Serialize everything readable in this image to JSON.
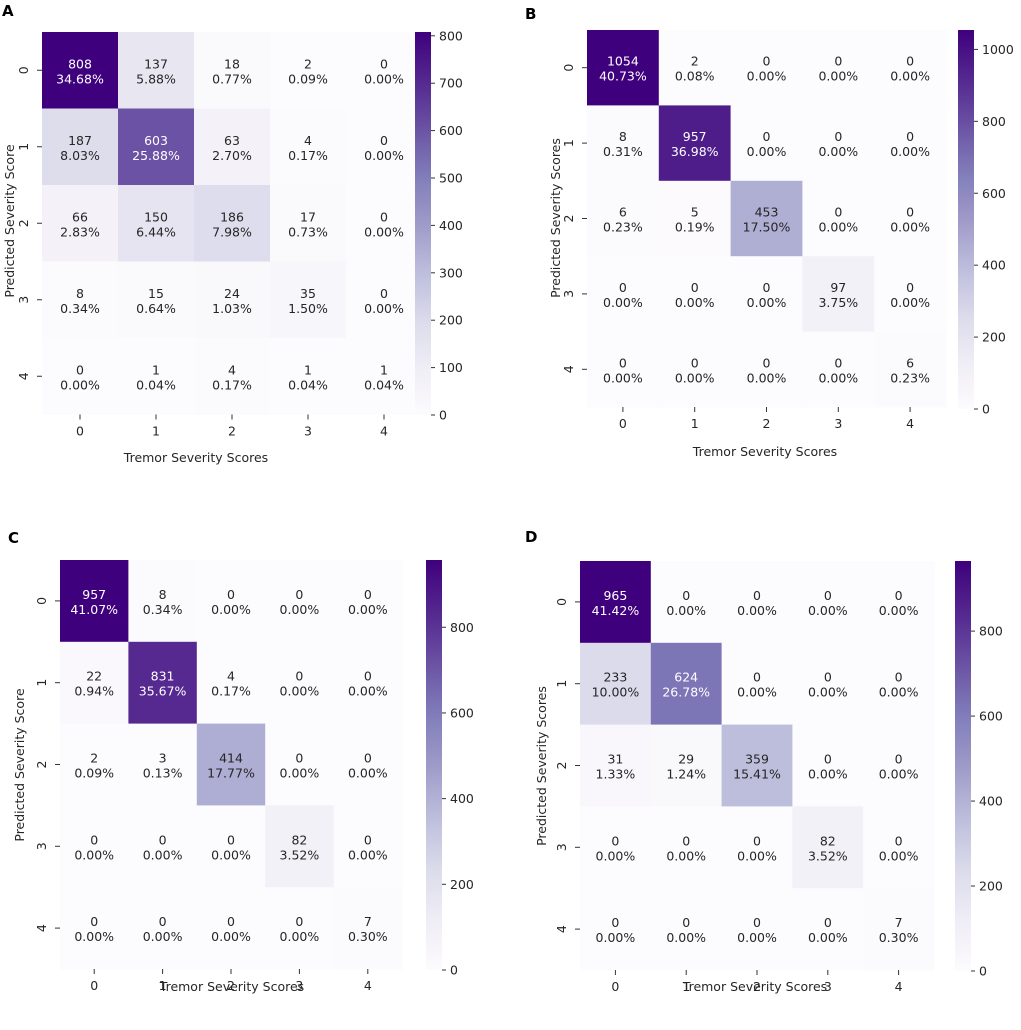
{
  "figure_title": "",
  "colors": {
    "low": "#fcfbfd",
    "high": "#3f007d",
    "text_dark": "#262626",
    "text_light": "#ffffff",
    "axis": "#333333"
  },
  "chart_data": [
    {
      "panel": "A",
      "type": "heatmap",
      "xlabel": "Tremor Severity Scores",
      "ylabel": "Predicted Severity Score",
      "x_categories": [
        "0",
        "1",
        "2",
        "3",
        "4"
      ],
      "y_categories": [
        "0",
        "1",
        "2",
        "3",
        "4"
      ],
      "values": [
        [
          808,
          137,
          18,
          2,
          0
        ],
        [
          187,
          603,
          63,
          4,
          0
        ],
        [
          66,
          150,
          186,
          17,
          0
        ],
        [
          8,
          15,
          24,
          35,
          0
        ],
        [
          0,
          1,
          4,
          1,
          1
        ]
      ],
      "percents": [
        [
          "34.68%",
          "5.88%",
          "0.77%",
          "0.09%",
          "0.00%"
        ],
        [
          "8.03%",
          "25.88%",
          "2.70%",
          "0.17%",
          "0.00%"
        ],
        [
          "2.83%",
          "6.44%",
          "7.98%",
          "0.73%",
          "0.00%"
        ],
        [
          "0.34%",
          "0.64%",
          "1.03%",
          "1.50%",
          "0.00%"
        ],
        [
          "0.00%",
          "0.04%",
          "0.17%",
          "0.04%",
          "0.04%"
        ]
      ],
      "colorbar": {
        "min": 0,
        "max": 808,
        "ticks": [
          0,
          100,
          200,
          300,
          400,
          500,
          600,
          700,
          800
        ]
      }
    },
    {
      "panel": "B",
      "type": "heatmap",
      "xlabel": "Tremor Severity Scores",
      "ylabel": "Predicted Severity Scores",
      "x_categories": [
        "0",
        "1",
        "2",
        "3",
        "4"
      ],
      "y_categories": [
        "0",
        "1",
        "2",
        "3",
        "4"
      ],
      "values": [
        [
          1054,
          2,
          0,
          0,
          0
        ],
        [
          8,
          957,
          0,
          0,
          0
        ],
        [
          6,
          5,
          453,
          0,
          0
        ],
        [
          0,
          0,
          0,
          97,
          0
        ],
        [
          0,
          0,
          0,
          0,
          6
        ]
      ],
      "percents": [
        [
          "40.73%",
          "0.08%",
          "0.00%",
          "0.00%",
          "0.00%"
        ],
        [
          "0.31%",
          "36.98%",
          "0.00%",
          "0.00%",
          "0.00%"
        ],
        [
          "0.23%",
          "0.19%",
          "17.50%",
          "0.00%",
          "0.00%"
        ],
        [
          "0.00%",
          "0.00%",
          "0.00%",
          "3.75%",
          "0.00%"
        ],
        [
          "0.00%",
          "0.00%",
          "0.00%",
          "0.00%",
          "0.23%"
        ]
      ],
      "colorbar": {
        "min": 0,
        "max": 1054,
        "ticks": [
          0,
          200,
          400,
          600,
          800,
          1000
        ]
      }
    },
    {
      "panel": "C",
      "type": "heatmap",
      "xlabel": "Tremor Severity Scores",
      "ylabel": "Predicted Severity Score",
      "x_categories": [
        "0",
        "1",
        "2",
        "3",
        "4"
      ],
      "y_categories": [
        "0",
        "1",
        "2",
        "3",
        "4"
      ],
      "values": [
        [
          957,
          8,
          0,
          0,
          0
        ],
        [
          22,
          831,
          4,
          0,
          0
        ],
        [
          2,
          3,
          414,
          0,
          0
        ],
        [
          0,
          0,
          0,
          82,
          0
        ],
        [
          0,
          0,
          0,
          0,
          7
        ]
      ],
      "percents": [
        [
          "41.07%",
          "0.34%",
          "0.00%",
          "0.00%",
          "0.00%"
        ],
        [
          "0.94%",
          "35.67%",
          "0.17%",
          "0.00%",
          "0.00%"
        ],
        [
          "0.09%",
          "0.13%",
          "17.77%",
          "0.00%",
          "0.00%"
        ],
        [
          "0.00%",
          "0.00%",
          "0.00%",
          "3.52%",
          "0.00%"
        ],
        [
          "0.00%",
          "0.00%",
          "0.00%",
          "0.00%",
          "0.30%"
        ]
      ],
      "colorbar": {
        "min": 0,
        "max": 957,
        "ticks": [
          0,
          200,
          400,
          600,
          800
        ]
      }
    },
    {
      "panel": "D",
      "type": "heatmap",
      "xlabel": "Tremor Severity Scores",
      "ylabel": "Predicted Severity Scores",
      "x_categories": [
        "0",
        "1",
        "2",
        "3",
        "4"
      ],
      "y_categories": [
        "0",
        "1",
        "2",
        "3",
        "4"
      ],
      "values": [
        [
          965,
          0,
          0,
          0,
          0
        ],
        [
          233,
          624,
          0,
          0,
          0
        ],
        [
          31,
          29,
          359,
          0,
          0
        ],
        [
          0,
          0,
          0,
          82,
          0
        ],
        [
          0,
          0,
          0,
          0,
          7
        ]
      ],
      "percents": [
        [
          "41.42%",
          "0.00%",
          "0.00%",
          "0.00%",
          "0.00%"
        ],
        [
          "10.00%",
          "26.78%",
          "0.00%",
          "0.00%",
          "0.00%"
        ],
        [
          "1.33%",
          "1.24%",
          "15.41%",
          "0.00%",
          "0.00%"
        ],
        [
          "0.00%",
          "0.00%",
          "0.00%",
          "3.52%",
          "0.00%"
        ],
        [
          "0.00%",
          "0.00%",
          "0.00%",
          "0.00%",
          "0.30%"
        ]
      ],
      "colorbar": {
        "min": 0,
        "max": 965,
        "ticks": [
          0,
          200,
          400,
          600,
          800
        ]
      }
    }
  ]
}
